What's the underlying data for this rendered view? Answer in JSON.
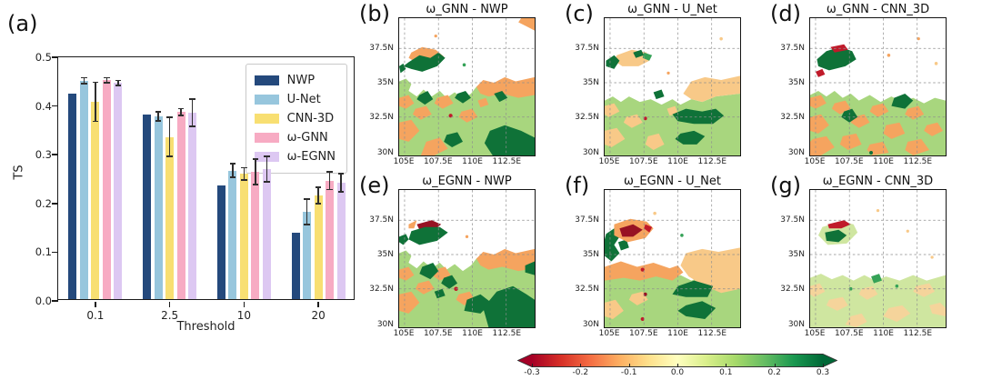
{
  "figure": {
    "panel_a_label": "(a)"
  },
  "chart_data": {
    "type": "bar",
    "title": "",
    "xlabel": "Threshold",
    "ylabel": "TS",
    "categories": [
      "0.1",
      "2.5",
      "10",
      "20"
    ],
    "ylim": [
      0,
      0.5
    ],
    "yticks": [
      "0.0",
      "0.1",
      "0.2",
      "0.3",
      "0.4",
      "0.5"
    ],
    "grid": false,
    "legend_position": "upper right",
    "error_bars": true,
    "series": [
      {
        "name": "NWP",
        "color": "#24497c",
        "values": [
          0.422,
          0.378,
          0.233,
          0.136
        ],
        "errors": [
          0,
          0,
          0,
          0
        ]
      },
      {
        "name": "U-Net",
        "color": "#97c6dd",
        "values": [
          0.448,
          0.375,
          0.264,
          0.179
        ],
        "errors": [
          0.006,
          0.009,
          0.014,
          0.026
        ]
      },
      {
        "name": "CNN-3D",
        "color": "#f8df72",
        "values": [
          0.405,
          0.333,
          0.257,
          0.213
        ],
        "errors": [
          0.04,
          0.04,
          0.013,
          0.017
        ]
      },
      {
        "name": "ω-GNN",
        "color": "#f7abc3",
        "values": [
          0.449,
          0.384,
          0.261,
          0.243
        ],
        "errors": [
          0.005,
          0.007,
          0.026,
          0.018
        ]
      },
      {
        "name": "ω-EGNN",
        "color": "#ddc8f2",
        "values": [
          0.444,
          0.383,
          0.267,
          0.239
        ],
        "errors": [
          0.005,
          0.028,
          0.026,
          0.019
        ]
      }
    ]
  },
  "maps": {
    "lat_ticks": [
      "37.5N",
      "35N",
      "32.5N",
      "30N"
    ],
    "lon_ticks": [
      "105E",
      "107.5E",
      "110E",
      "112.5E"
    ],
    "panels": [
      {
        "label": "(b)",
        "title": "ω_GNN - NWP"
      },
      {
        "label": "(c)",
        "title": "ω_GNN - U_Net"
      },
      {
        "label": "(d)",
        "title": "ω_GNN - CNN_3D"
      },
      {
        "label": "(e)",
        "title": "ω_EGNN - NWP"
      },
      {
        "label": "(f)",
        "title": "ω_EGNN - U_Net"
      },
      {
        "label": "(g)",
        "title": "ω_EGNN - CNN_3D"
      }
    ]
  },
  "colorbar": {
    "ticks": [
      "-0.3",
      "-0.2",
      "-0.1",
      "0.0",
      "0.1",
      "0.2",
      "0.3"
    ],
    "range": [
      -0.3,
      0.3
    ],
    "colormap": "RdYlGn",
    "colors": [
      "#a50026",
      "#d73027",
      "#f46d43",
      "#fdae61",
      "#fee08b",
      "#ffffbf",
      "#d9ef8b",
      "#a6d96a",
      "#66bd63",
      "#1a9850",
      "#006837"
    ]
  }
}
